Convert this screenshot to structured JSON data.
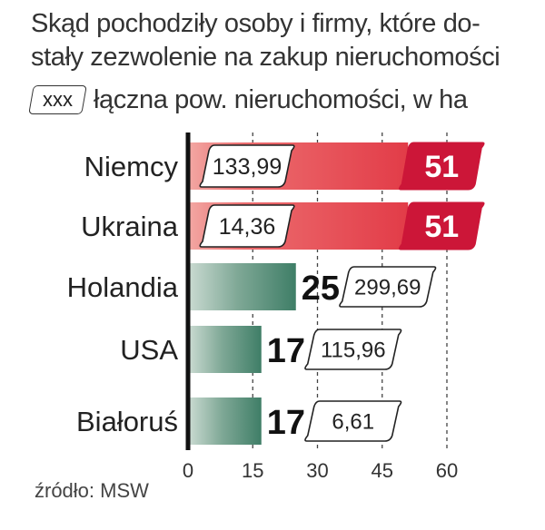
{
  "chart_data": {
    "type": "bar",
    "title_lines": [
      "Skąd pochodziły osoby i firmy, które do-",
      "stały zezwolenie na zakup nieruchomości"
    ],
    "legend": {
      "box_text": "xxx",
      "text": "łączna pow. nieruchomości, w ha"
    },
    "categories": [
      "Niemcy",
      "Ukraina",
      "Holandia",
      "USA",
      "Białoruś"
    ],
    "counts": [
      51,
      51,
      25,
      17,
      17
    ],
    "area_labels": [
      "133,99",
      "14,36",
      "299,69",
      "115,96",
      "6,61"
    ],
    "highlighted": [
      true,
      true,
      false,
      false,
      false
    ],
    "x_ticks": [
      0,
      15,
      30,
      45,
      60
    ],
    "xlim": [
      0,
      60
    ],
    "grid": "vertical dashed",
    "colors": {
      "highlight_bar": "#e4414b",
      "highlight_badge": "#cc1638",
      "default_bar": "#3f7e67"
    }
  },
  "source": "źródło: MSW"
}
